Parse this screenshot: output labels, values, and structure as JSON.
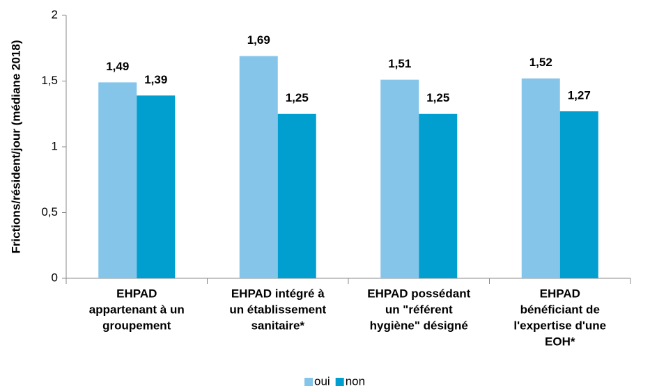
{
  "chart_data": {
    "type": "bar",
    "y_label": "Frictions/résident/jour (médiane 2018)",
    "categories": [
      [
        "EHPAD",
        "appartenant à un",
        "groupement"
      ],
      [
        "EHPAD intégré à",
        "un établissement",
        "sanitaire*"
      ],
      [
        "EHPAD possédant",
        "un  \"référent",
        "hygiène\" désigné"
      ],
      [
        "EHPAD",
        "bénéficiant de",
        "l'expertise d'une",
        "EOH*"
      ]
    ],
    "series": [
      {
        "name": "oui",
        "color": "#85c5ea",
        "values": [
          1.49,
          1.69,
          1.51,
          1.52
        ],
        "value_labels": [
          "1,49",
          "1,69",
          "1,51",
          "1,52"
        ]
      },
      {
        "name": "non",
        "color": "#009fd0",
        "values": [
          1.39,
          1.25,
          1.25,
          1.27
        ],
        "value_labels": [
          "1,39",
          "1,25",
          "1,25",
          "1,27"
        ]
      }
    ],
    "ylim": [
      0,
      2
    ],
    "yticks": [
      0,
      {
        "value": 0.5,
        "label": "0,5"
      },
      1,
      {
        "value": 1.5,
        "label": "1,5"
      },
      2
    ],
    "legend": "bottom"
  }
}
